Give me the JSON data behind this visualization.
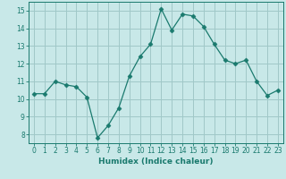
{
  "x": [
    0,
    1,
    2,
    3,
    4,
    5,
    6,
    7,
    8,
    9,
    10,
    11,
    12,
    13,
    14,
    15,
    16,
    17,
    18,
    19,
    20,
    21,
    22,
    23
  ],
  "y": [
    10.3,
    10.3,
    11.0,
    10.8,
    10.7,
    10.1,
    7.8,
    8.5,
    9.5,
    11.3,
    12.4,
    13.1,
    15.1,
    13.9,
    14.8,
    14.7,
    14.1,
    13.1,
    12.2,
    12.0,
    12.2,
    11.0,
    10.2,
    10.5
  ],
  "line_color": "#1a7a6e",
  "marker": "D",
  "marker_size": 2.5,
  "bg_color": "#c8e8e8",
  "grid_color": "#a0c8c8",
  "xlabel": "Humidex (Indice chaleur)",
  "xlim": [
    -0.5,
    23.5
  ],
  "ylim": [
    7.5,
    15.5
  ],
  "yticks": [
    8,
    9,
    10,
    11,
    12,
    13,
    14,
    15
  ],
  "xticks": [
    0,
    1,
    2,
    3,
    4,
    5,
    6,
    7,
    8,
    9,
    10,
    11,
    12,
    13,
    14,
    15,
    16,
    17,
    18,
    19,
    20,
    21,
    22,
    23
  ],
  "tick_color": "#1a7a6e",
  "label_fontsize": 6.5,
  "tick_fontsize": 5.5
}
